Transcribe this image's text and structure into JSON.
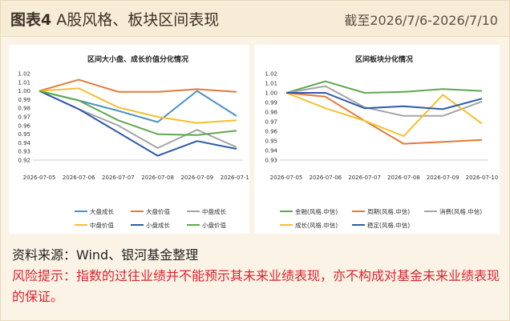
{
  "header": {
    "label": "图表4",
    "subtitle": "A股风格、板块区间表现",
    "date_range": "截至2026/7/6-2026/7/10"
  },
  "chart_data": [
    {
      "type": "line",
      "title": "区间大小盘、成长价值分化情况",
      "x": [
        "2026-07-05",
        "2026-07-06",
        "2026-07-07",
        "2026-07-08",
        "2026-07-09",
        "2026-07-10"
      ],
      "ylim": [
        0.92,
        1.02
      ],
      "yticks": [
        0.92,
        0.93,
        0.94,
        0.95,
        0.96,
        0.97,
        0.98,
        0.99,
        1.0,
        1.01,
        1.02
      ],
      "series": [
        {
          "name": "大盘成长",
          "color": "#4a90c8",
          "values": [
            1.0,
            0.989,
            0.977,
            0.964,
            1.0,
            0.971
          ]
        },
        {
          "name": "大盘价值",
          "color": "#e07b39",
          "values": [
            1.0,
            1.013,
            0.999,
            0.999,
            1.002,
            0.999
          ]
        },
        {
          "name": "中盘成长",
          "color": "#a5a5a5",
          "values": [
            1.0,
            0.979,
            0.96,
            0.934,
            0.955,
            0.935
          ]
        },
        {
          "name": "中盘价值",
          "color": "#f2c12e",
          "values": [
            1.0,
            1.003,
            0.981,
            0.97,
            0.963,
            0.966
          ]
        },
        {
          "name": "小盘成长",
          "color": "#2e5aa8",
          "values": [
            1.0,
            0.979,
            0.952,
            0.925,
            0.942,
            0.933
          ]
        },
        {
          "name": "小盘价值",
          "color": "#5fa84e",
          "values": [
            1.0,
            0.989,
            0.966,
            0.95,
            0.949,
            0.954
          ]
        }
      ]
    },
    {
      "type": "line",
      "title": "区间板块分化情况",
      "x": [
        "2026-07-05",
        "2026-07-06",
        "2026-07-07",
        "2026-07-08",
        "2026-07-09",
        "2026-07-10"
      ],
      "ylim": [
        0.93,
        1.02
      ],
      "yticks": [
        0.93,
        0.94,
        0.95,
        0.96,
        0.97,
        0.98,
        0.99,
        1.0,
        1.01,
        1.02
      ],
      "series": [
        {
          "name": "金融(风格.中信)",
          "color": "#5fa84e",
          "values": [
            1.0,
            1.012,
            1.0,
            1.001,
            1.004,
            1.002
          ]
        },
        {
          "name": "周期(风格.中信)",
          "color": "#e07b39",
          "values": [
            1.0,
            0.996,
            0.971,
            0.947,
            0.949,
            0.951
          ]
        },
        {
          "name": "消费(风格.中信)",
          "color": "#a5a5a5",
          "values": [
            1.0,
            1.007,
            0.985,
            0.976,
            0.976,
            0.991
          ]
        },
        {
          "name": "成长(风格.中信)",
          "color": "#f2c12e",
          "values": [
            1.0,
            0.984,
            0.971,
            0.955,
            0.998,
            0.968
          ]
        },
        {
          "name": "稳定(风格.中信)",
          "color": "#2e5aa8",
          "values": [
            1.0,
            1.0,
            0.984,
            0.986,
            0.983,
            0.994
          ]
        }
      ]
    }
  ],
  "footer": {
    "source": "资料来源：Wind、银河基金整理",
    "risk": "风险提示：指数的过往业绩并不能预示其未来业绩表现，亦不构成对基金未来业绩表现的保证。"
  }
}
